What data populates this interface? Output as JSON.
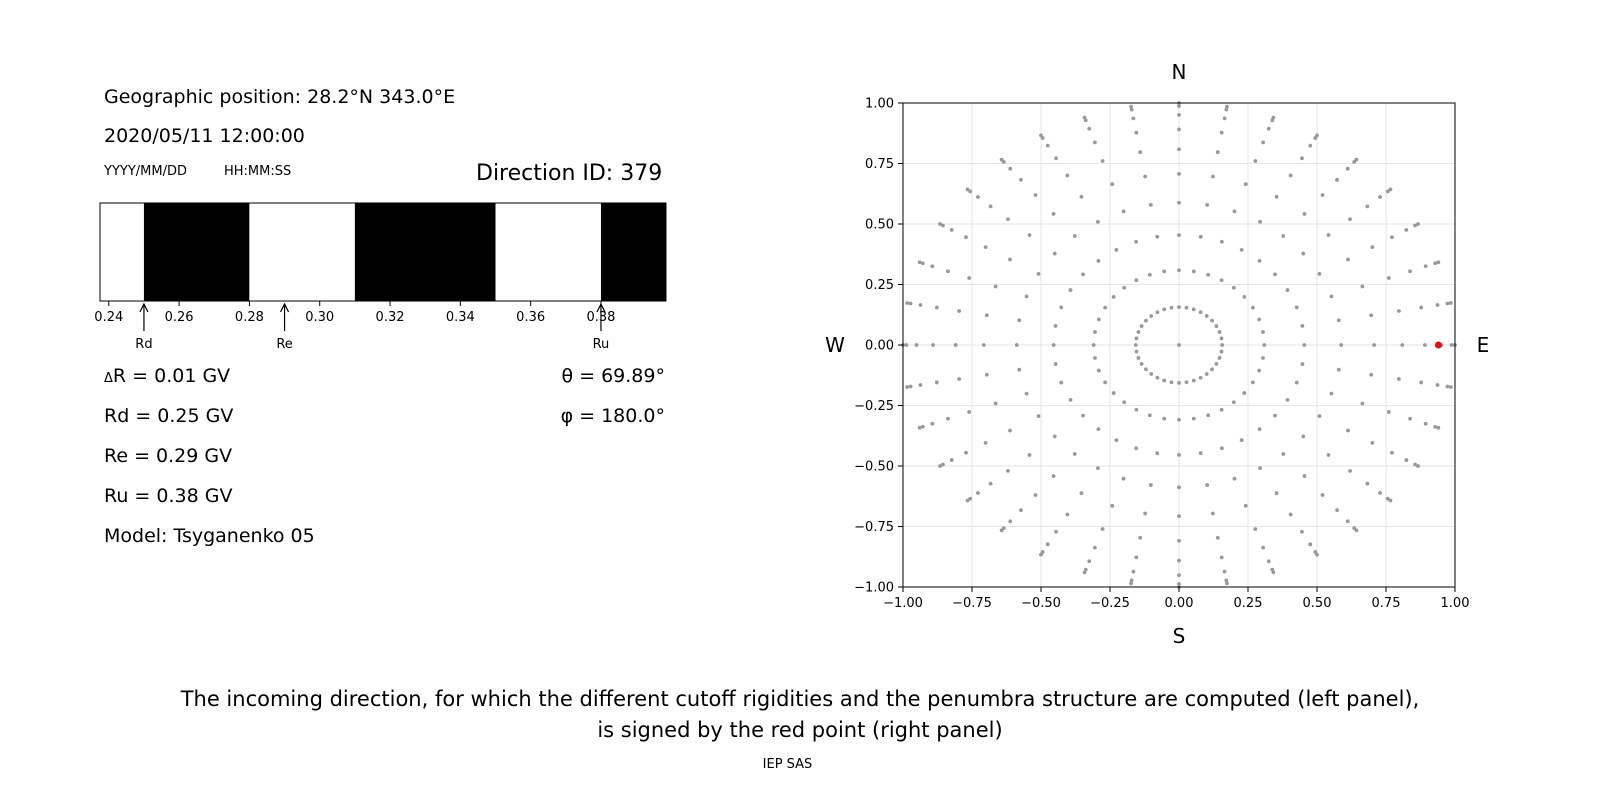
{
  "left_panel": {
    "position_label": "Geographic position: 28.2°N 343.0°E",
    "datetime": "2020/05/11 12:00:00",
    "date_format": "YYYY/MM/DD",
    "time_format": "HH:MM:SS",
    "direction_id": "Direction ID: 379",
    "delta_r": "R = 0.01 GV",
    "delta_symbol": "Δ",
    "rd": "Rd = 0.25 GV",
    "re": "Re = 0.29 GV",
    "ru": "Ru = 0.38 GV",
    "model": "Model: Tsyganenko 05",
    "theta": "θ = 69.89°",
    "phi": "φ = 180.0°"
  },
  "chart_data": [
    {
      "type": "bar",
      "description_kind": "penumbra-strip",
      "xlim": [
        0.2375,
        0.3985
      ],
      "ticks": [
        "0.24",
        "0.26",
        "0.28",
        "0.30",
        "0.32",
        "0.34",
        "0.36",
        "0.38"
      ],
      "tick_values": [
        0.24,
        0.26,
        0.28,
        0.3,
        0.32,
        0.34,
        0.36,
        0.38
      ],
      "segments": [
        {
          "from": 0.2375,
          "to": 0.25,
          "state": "allowed",
          "color": "#ffffff"
        },
        {
          "from": 0.25,
          "to": 0.28,
          "state": "forbidden",
          "color": "#000000"
        },
        {
          "from": 0.28,
          "to": 0.31,
          "state": "allowed",
          "color": "#ffffff"
        },
        {
          "from": 0.31,
          "to": 0.35,
          "state": "forbidden",
          "color": "#000000"
        },
        {
          "from": 0.35,
          "to": 0.38,
          "state": "allowed",
          "color": "#ffffff"
        },
        {
          "from": 0.38,
          "to": 0.3985,
          "state": "forbidden",
          "color": "#000000"
        }
      ],
      "markers": [
        {
          "label": "Rd",
          "value": 0.25
        },
        {
          "label": "Re",
          "value": 0.29
        },
        {
          "label": "Ru",
          "value": 0.38
        }
      ]
    },
    {
      "type": "scatter",
      "xlim": [
        -1.0,
        1.0
      ],
      "ylim": [
        -1.0,
        1.0
      ],
      "grid": true,
      "xticks": [
        "−1.00",
        "−0.75",
        "−0.50",
        "−0.25",
        "0.00",
        "0.25",
        "0.50",
        "0.75",
        "1.00"
      ],
      "yticks": [
        "1.00",
        "0.75",
        "0.50",
        "0.25",
        "0.00",
        "−0.25",
        "−0.50",
        "−0.75",
        "−1.00"
      ],
      "tick_values": [
        -1.0,
        -0.75,
        -0.5,
        -0.25,
        0.0,
        0.25,
        0.5,
        0.75,
        1.0
      ],
      "compass": {
        "north": "N",
        "south": "S",
        "west": "W",
        "east": "E"
      },
      "grid_directions": {
        "rings": 10,
        "spokes": 36,
        "max_zenith_deg": 90
      },
      "point_color": "#999999",
      "highlight": {
        "x": 0.94,
        "y": 0.0,
        "color": "#dd1111"
      }
    }
  ],
  "caption": {
    "line1": "The incoming direction, for which the different cutoff rigidities and the penumbra structure are computed (left panel),",
    "line2": "is signed by the red point (right panel)"
  },
  "footer": "IEP SAS"
}
